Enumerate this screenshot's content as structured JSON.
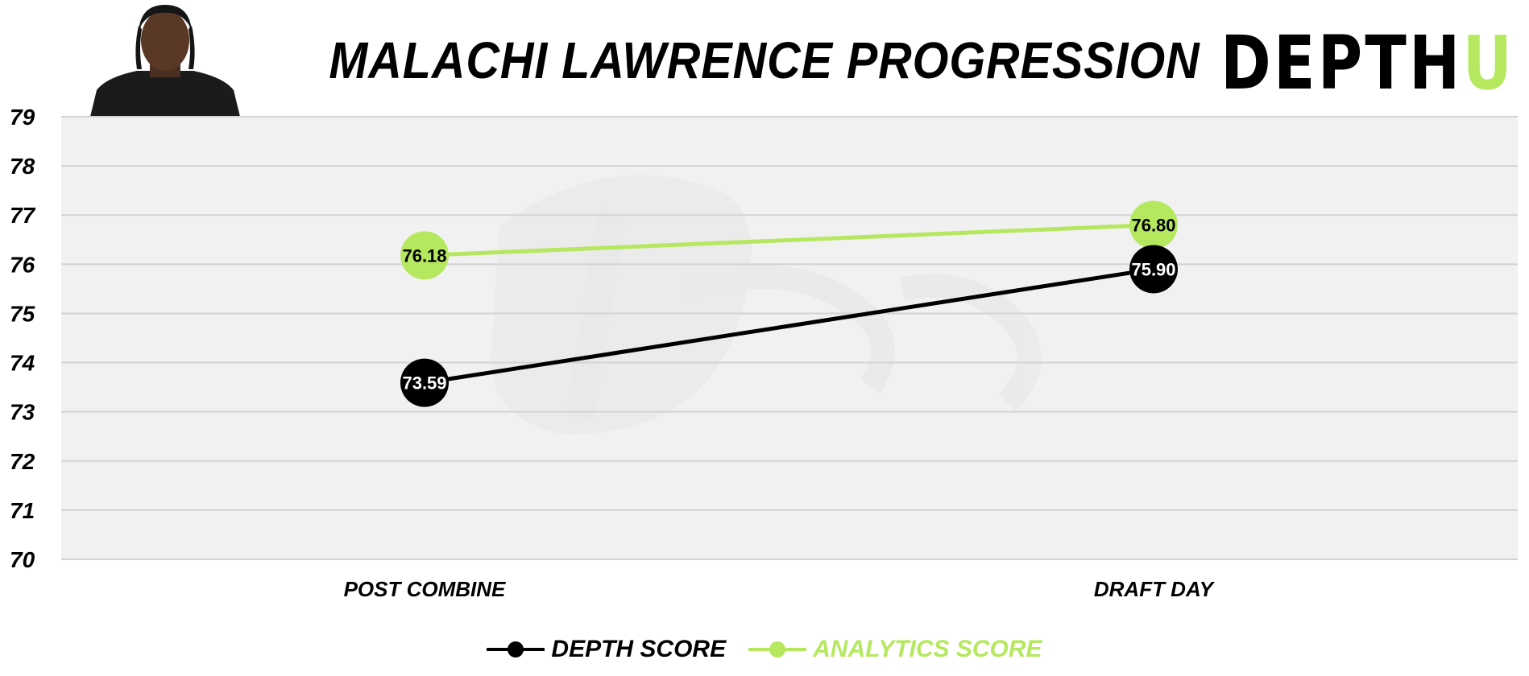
{
  "header": {
    "title": "MALACHI LAWRENCE PROGRESSION"
  },
  "logo": {
    "main": "DEPTH",
    "accent": "U"
  },
  "colors": {
    "depth": "#000000",
    "analytics": "#b5e85f",
    "plot_bg": "#f1f1f1",
    "grid": "#d3d3d3"
  },
  "chart_data": {
    "type": "line",
    "title": "MALACHI LAWRENCE PROGRESSION",
    "categories": [
      "POST COMBINE",
      "DRAFT DAY"
    ],
    "series": [
      {
        "name": "DEPTH SCORE",
        "values": [
          73.59,
          75.9
        ],
        "labels": [
          "73.59",
          "75.90"
        ],
        "color": "#000000"
      },
      {
        "name": "ANALYTICS SCORE",
        "values": [
          76.18,
          76.8
        ],
        "labels": [
          "76.18",
          "76.80"
        ],
        "color": "#b5e85f"
      }
    ],
    "ylim": [
      70,
      79
    ],
    "yticks": [
      "70",
      "71",
      "72",
      "73",
      "74",
      "75",
      "76",
      "77",
      "78",
      "79"
    ],
    "grid": true,
    "legend": "bottom-center",
    "xlabel": "",
    "ylabel": ""
  }
}
